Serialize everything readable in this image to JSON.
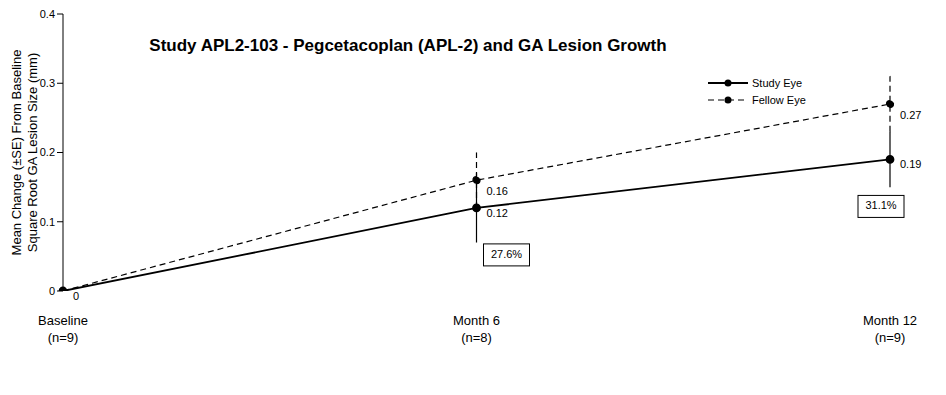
{
  "chart_data": {
    "type": "line",
    "title": "Study APL2-103 - Pegcetacoplan (APL-2) and GA Lesion Growth",
    "y_label": "Mean Change (±SE) From Baseline\nSquare Root GA Lesion Size (mm)",
    "categories": [
      "Baseline\n(n=9)",
      "Month 6\n(n=8)",
      "Month 12\n(n=9)"
    ],
    "series": [
      {
        "name": "Study Eye",
        "color": "#000000",
        "line_style": "solid",
        "marker": "circle",
        "values": [
          0,
          0.12,
          0.19
        ],
        "error": [
          0,
          0.05,
          0.04
        ]
      },
      {
        "name": "Fellow Eye",
        "color": "#000000",
        "line_style": "dashed",
        "marker": "circle",
        "values": [
          0,
          0.16,
          0.27
        ],
        "error": [
          0,
          0.04,
          0.04
        ],
        "value_labels": [
          null,
          "0.16",
          "0.27"
        ]
      }
    ],
    "ylim": [
      0,
      0.4
    ],
    "yticks": [
      0,
      0.1,
      0.2,
      0.3,
      0.4
    ],
    "grid": false,
    "legend": "upper right",
    "data_labels": true,
    "annotations": [
      {
        "text": "27.6%",
        "category": "Month 6\n(n=8)"
      },
      {
        "text": "31.1%",
        "category": "Month 12\n(n=9)"
      }
    ]
  }
}
